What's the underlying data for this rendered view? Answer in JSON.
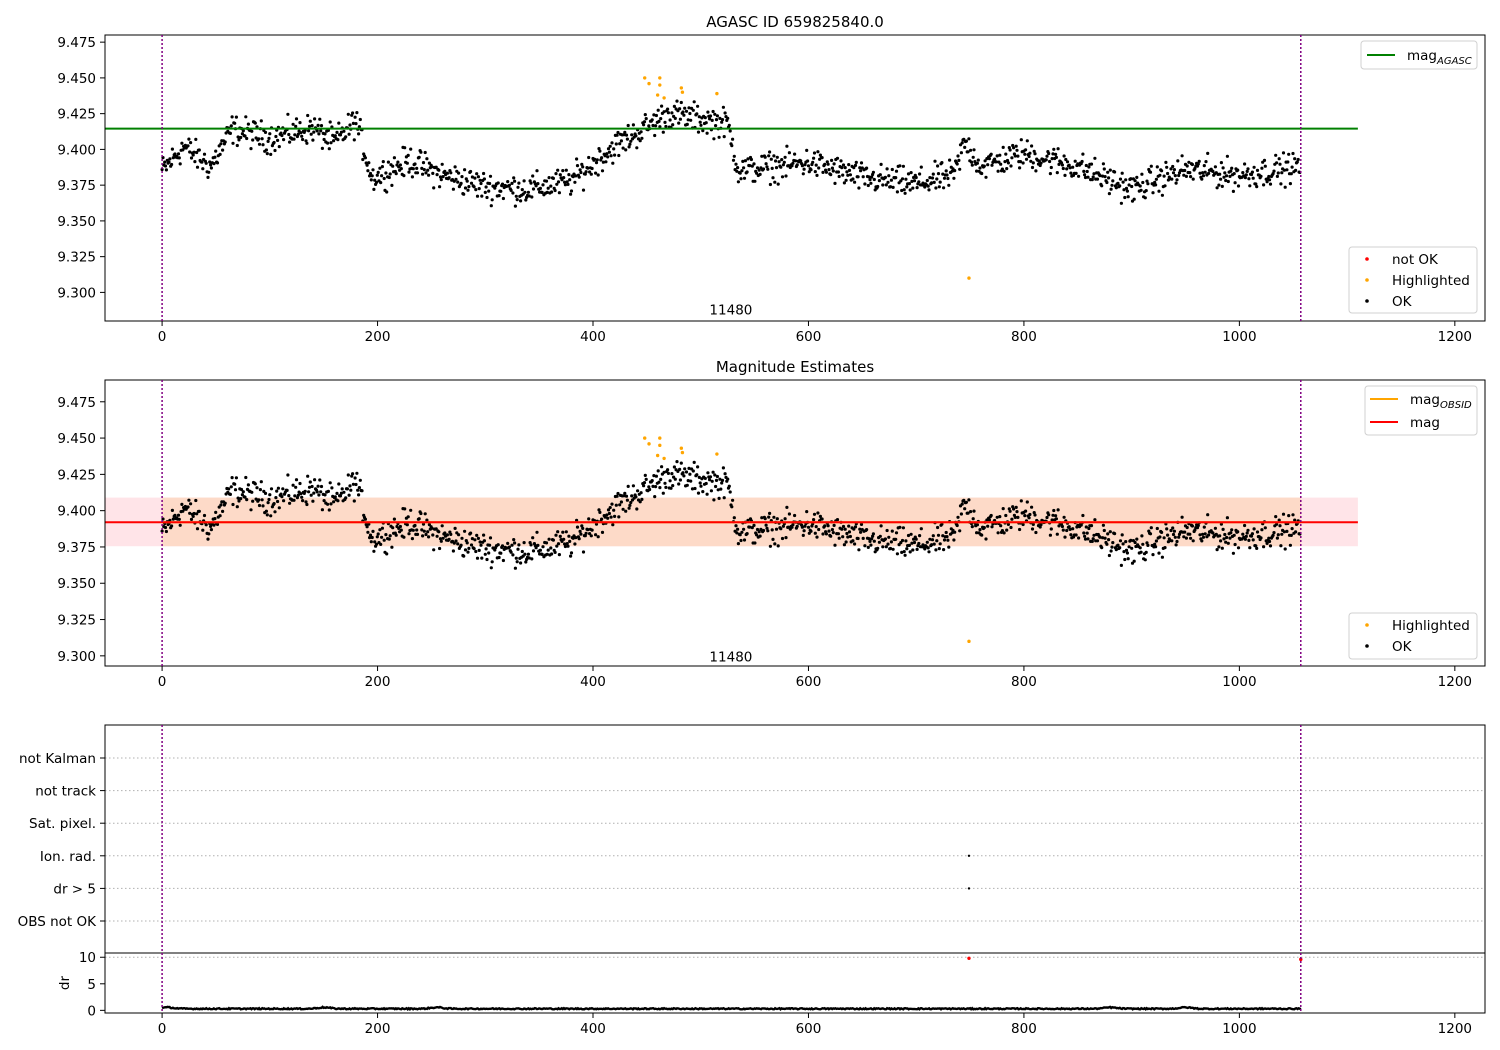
{
  "chart_data": [
    {
      "type": "scatter",
      "title": "AGASC ID 659825840.0",
      "xlabel": "",
      "ylabel": "",
      "xlim": [
        -53,
        1228
      ],
      "ylim": [
        9.28,
        9.48
      ],
      "xticks": [
        0,
        200,
        400,
        600,
        800,
        1000,
        1200
      ],
      "yticks": [
        9.3,
        9.325,
        9.35,
        9.375,
        9.4,
        9.425,
        9.45,
        9.475
      ],
      "grid": false,
      "annotation": {
        "text": "11480",
        "x": 528,
        "y": 9.288
      },
      "vlines": [
        0,
        1057
      ],
      "hlines": [
        {
          "name": "mag_AGASC",
          "y": 9.4145,
          "xmin": -53,
          "xmax": 1110,
          "color": "#008000"
        }
      ],
      "legend_lines": {
        "position": "top-right",
        "entries": [
          {
            "label": "mag",
            "sub": "AGASC",
            "color": "#008000"
          }
        ]
      },
      "legend_points": {
        "position": "bottom-right",
        "entries": [
          {
            "label": "not OK",
            "color": "#ff0000"
          },
          {
            "label": "Highlighted",
            "color": "#ffa500"
          },
          {
            "label": "OK",
            "color": "#000000"
          }
        ]
      },
      "segments": [
        {
          "x": [
            0,
            20
          ],
          "y": [
            9.385,
            9.402
          ]
        },
        {
          "x": [
            20,
            45
          ],
          "y": [
            9.402,
            9.388
          ]
        },
        {
          "x": [
            45,
            65
          ],
          "y": [
            9.388,
            9.414
          ]
        },
        {
          "x": [
            65,
            100
          ],
          "y": [
            9.414,
            9.408
          ]
        },
        {
          "x": [
            100,
            140
          ],
          "y": [
            9.408,
            9.415
          ]
        },
        {
          "x": [
            140,
            160
          ],
          "y": [
            9.415,
            9.405
          ]
        },
        {
          "x": [
            160,
            180
          ],
          "y": [
            9.405,
            9.42
          ]
        },
        {
          "x": [
            180,
            195
          ],
          "y": [
            9.42,
            9.38
          ]
        },
        {
          "x": [
            195,
            230
          ],
          "y": [
            9.38,
            9.392
          ]
        },
        {
          "x": [
            230,
            260
          ],
          "y": [
            9.392,
            9.382
          ]
        },
        {
          "x": [
            260,
            300
          ],
          "y": [
            9.382,
            9.374
          ]
        },
        {
          "x": [
            300,
            340
          ],
          "y": [
            9.374,
            9.372
          ]
        },
        {
          "x": [
            340,
            380
          ],
          "y": [
            9.372,
            9.378
          ]
        },
        {
          "x": [
            380,
            420
          ],
          "y": [
            9.378,
            9.402
          ]
        },
        {
          "x": [
            420,
            470
          ],
          "y": [
            9.402,
            9.425
          ]
        },
        {
          "x": [
            470,
            525
          ],
          "y": [
            9.425,
            9.418
          ]
        },
        {
          "x": [
            525,
            535
          ],
          "y": [
            9.418,
            9.385
          ]
        },
        {
          "x": [
            535,
            600
          ],
          "y": [
            9.385,
            9.391
          ]
        },
        {
          "x": [
            600,
            650
          ],
          "y": [
            9.391,
            9.38
          ]
        },
        {
          "x": [
            650,
            700
          ],
          "y": [
            9.38,
            9.376
          ]
        },
        {
          "x": [
            700,
            735
          ],
          "y": [
            9.376,
            9.382
          ]
        },
        {
          "x": [
            735,
            745
          ],
          "y": [
            9.382,
            9.405
          ]
        },
        {
          "x": [
            745,
            760
          ],
          "y": [
            9.405,
            9.388
          ]
        },
        {
          "x": [
            760,
            800
          ],
          "y": [
            9.388,
            9.397
          ]
        },
        {
          "x": [
            800,
            850
          ],
          "y": [
            9.397,
            9.388
          ]
        },
        {
          "x": [
            850,
            900
          ],
          "y": [
            9.388,
            9.372
          ]
        },
        {
          "x": [
            900,
            950
          ],
          "y": [
            9.372,
            9.386
          ]
        },
        {
          "x": [
            950,
            1000
          ],
          "y": [
            9.386,
            9.382
          ]
        },
        {
          "x": [
            1000,
            1057
          ],
          "y": [
            9.382,
            9.388
          ]
        }
      ],
      "noise": 0.0075,
      "highlighted": [
        {
          "x": 448,
          "y": 9.45
        },
        {
          "x": 452,
          "y": 9.446
        },
        {
          "x": 462,
          "y": 9.45
        },
        {
          "x": 462,
          "y": 9.445
        },
        {
          "x": 460,
          "y": 9.438
        },
        {
          "x": 466,
          "y": 9.436
        },
        {
          "x": 482,
          "y": 9.443
        },
        {
          "x": 483,
          "y": 9.44
        },
        {
          "x": 515,
          "y": 9.439
        },
        {
          "x": 749,
          "y": 9.31
        }
      ]
    },
    {
      "type": "scatter",
      "title": "Magnitude Estimates",
      "xlabel": "",
      "ylabel": "",
      "xlim": [
        -53,
        1228
      ],
      "ylim": [
        9.293,
        9.49
      ],
      "xticks": [
        0,
        200,
        400,
        600,
        800,
        1000,
        1200
      ],
      "yticks": [
        9.3,
        9.325,
        9.35,
        9.375,
        9.4,
        9.425,
        9.45,
        9.475
      ],
      "grid": false,
      "annotation": {
        "text": "11480",
        "x": 528,
        "y": 9.2995
      },
      "vlines": [
        0,
        1057
      ],
      "band_pink": {
        "y0": 9.3755,
        "y1": 9.409,
        "xmin": -53,
        "xmax": 1110,
        "color": "#ffe4e8"
      },
      "band_orange": {
        "y0": 9.3755,
        "y1": 9.409,
        "xmin": 0,
        "xmax": 1057,
        "color": "#fddac8"
      },
      "hlines": [
        {
          "name": "mag_OBSID",
          "y": 9.392,
          "xmin": 0,
          "xmax": 1057,
          "color": "#ffa500"
        },
        {
          "name": "mag",
          "y": 9.392,
          "xmin": -53,
          "xmax": 1110,
          "color": "#ff0000"
        }
      ],
      "legend_lines": {
        "position": "top-right",
        "entries": [
          {
            "label": "mag",
            "sub": "OBSID",
            "color": "#ffa500"
          },
          {
            "label": "mag",
            "sub": "",
            "color": "#ff0000"
          }
        ]
      },
      "legend_points": {
        "position": "bottom-right",
        "entries": [
          {
            "label": "Highlighted",
            "color": "#ffa500"
          },
          {
            "label": "OK",
            "color": "#000000"
          }
        ]
      }
    },
    {
      "type": "scatter",
      "title": "",
      "xlabel": "",
      "ylabel": "",
      "xlim": [
        -53,
        1228
      ],
      "categories": [
        "OBS not OK",
        "dr > 5",
        "Ion. rad.",
        "Sat. pixel.",
        "not track",
        "not Kalman"
      ],
      "flags": [
        {
          "category": "Ion. rad.",
          "x": 749
        },
        {
          "category": "dr > 5",
          "x": 749
        }
      ],
      "grid": true,
      "vlines": [
        0,
        1057
      ]
    },
    {
      "type": "line",
      "title": "",
      "xlabel": "",
      "ylabel": "dr",
      "xlim": [
        -53,
        1228
      ],
      "ylim": [
        -0.5,
        10.8
      ],
      "xticks": [
        0,
        200,
        400,
        600,
        800,
        1000,
        1200
      ],
      "yticks": [
        0,
        5,
        10
      ],
      "dr_level": 0.3,
      "dr_peaks": [
        {
          "x": 5,
          "y": 0.6
        },
        {
          "x": 150,
          "y": 0.5
        },
        {
          "x": 255,
          "y": 0.45
        },
        {
          "x": 880,
          "y": 0.5
        },
        {
          "x": 950,
          "y": 0.6
        }
      ],
      "dr_outliers": [
        {
          "x": 749,
          "y": 9.8,
          "color": "#ff0000"
        },
        {
          "x": 1057,
          "y": 9.6,
          "color": "#ff0000"
        }
      ],
      "vlines": [
        0,
        1057
      ]
    }
  ]
}
